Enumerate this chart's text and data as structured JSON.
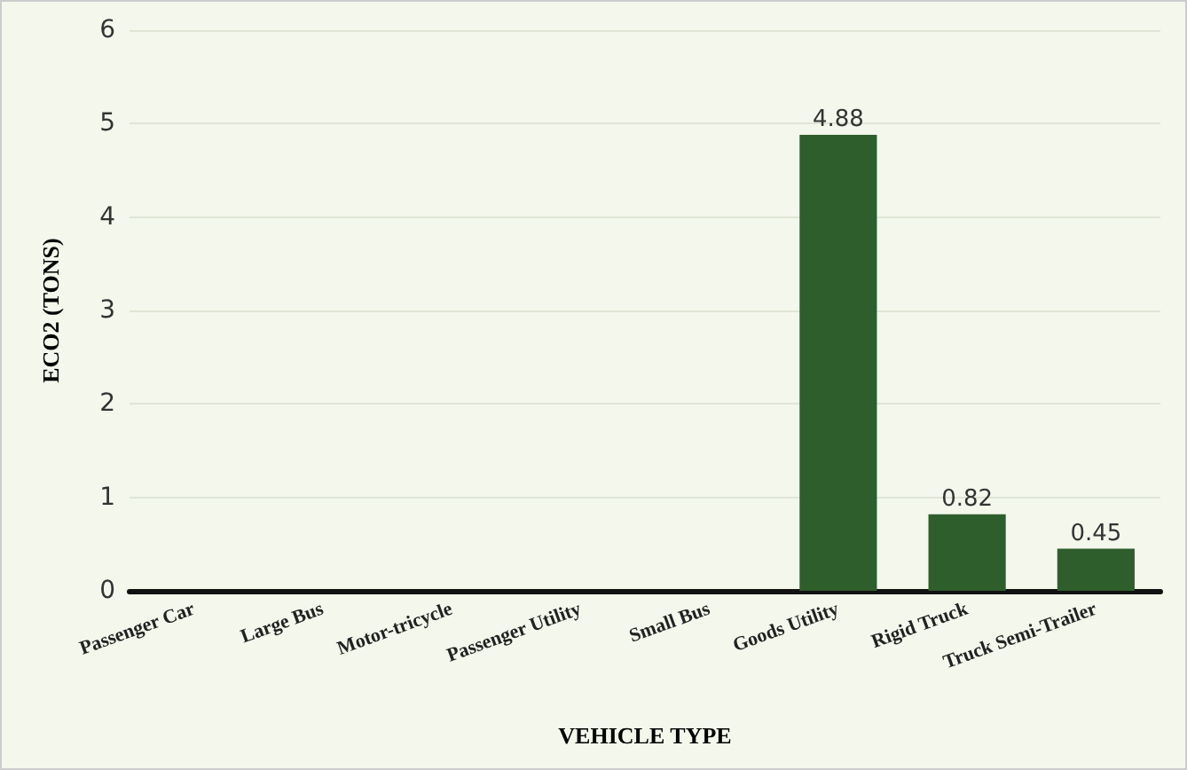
{
  "chart_data": {
    "type": "bar",
    "xlabel": "VEHICLE TYPE",
    "ylabel": "ECO2 (TONS)",
    "categories": [
      "Passenger Car",
      "Large Bus",
      "Motor-tricycle",
      "Passenger Utility",
      "Small Bus",
      "Goods Utility",
      "Rigid Truck",
      "Truck Semi-Trailer"
    ],
    "values": [
      0,
      0,
      0,
      0,
      0,
      4.88,
      0.82,
      0.45
    ],
    "value_labels": [
      null,
      null,
      null,
      null,
      null,
      "4.88",
      "0.82",
      "0.45"
    ],
    "color": "#2e5e2b",
    "ylim": [
      0,
      6
    ],
    "yticks": [
      0,
      1,
      2,
      3,
      4,
      5,
      6
    ],
    "grid": "y"
  }
}
